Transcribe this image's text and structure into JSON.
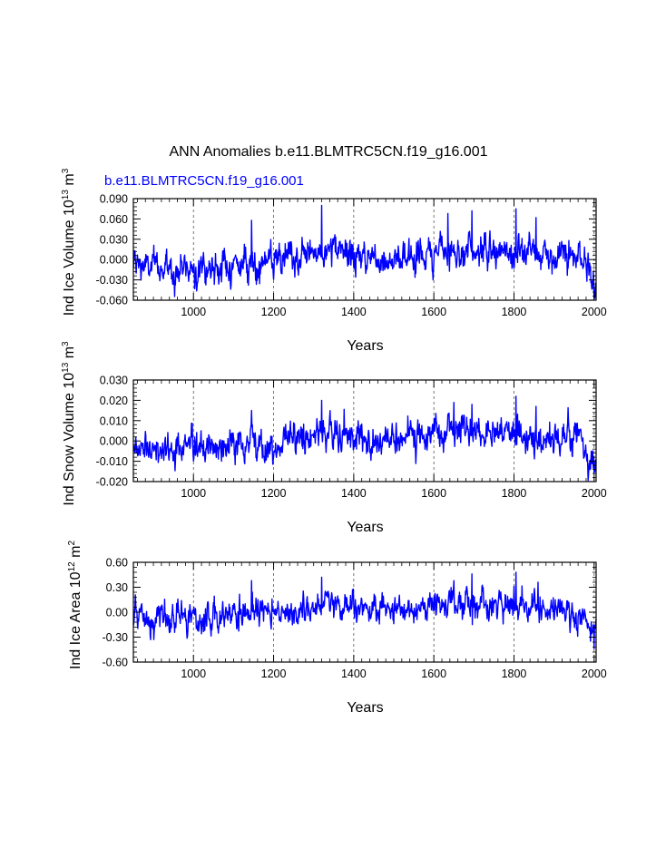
{
  "title": "ANN Anomalies b.e11.BLMTRC5CN.f19_g16.001",
  "series_label": "b.e11.BLMTRC5CN.f19_g16.001",
  "colors": {
    "line": "#0000ff",
    "text": "#000000",
    "grid": "#555555",
    "series_label": "#0000ff"
  },
  "chart_data": [
    {
      "type": "line",
      "title": "",
      "ylabel": {
        "main": "Ind Ice Volume 10",
        "sup": "13",
        "unit": " m",
        "unit_sup": "3"
      },
      "xlabel": "Years",
      "xlim": [
        850,
        2005
      ],
      "ylim": [
        -0.06,
        0.09
      ],
      "xticks": [
        1000,
        1200,
        1400,
        1600,
        1800,
        2000
      ],
      "yticks": [
        -0.06,
        -0.03,
        0.0,
        0.03,
        0.06,
        0.09
      ],
      "ytick_labels": [
        "-0.060",
        "-0.030",
        "0.000",
        "0.030",
        "0.060",
        "0.090"
      ],
      "xtick_labels": [
        "1000",
        "1200",
        "1400",
        "1600",
        "1800",
        "2000"
      ],
      "grid": "vertical dashed at x ticks",
      "series": [
        {
          "name": "b.e11.BLMTRC5CN.f19_g16.001",
          "x": [
            850,
            900,
            950,
            1000,
            1050,
            1100,
            1150,
            1200,
            1250,
            1300,
            1350,
            1400,
            1450,
            1500,
            1550,
            1600,
            1650,
            1700,
            1750,
            1800,
            1850,
            1900,
            1950,
            1975,
            1990,
            2000,
            2005
          ],
          "y": [
            -0.006,
            -0.012,
            -0.014,
            -0.01,
            -0.012,
            -0.008,
            -0.004,
            -0.006,
            0.0,
            0.01,
            0.012,
            0.006,
            0.002,
            0.002,
            0.004,
            0.01,
            0.014,
            0.016,
            0.008,
            0.012,
            0.01,
            0.006,
            0.004,
            -0.005,
            -0.025,
            -0.04,
            -0.035
          ],
          "noise": 0.012,
          "extremes": [
            [
              1145,
              0.058
            ],
            [
              1320,
              0.08
            ],
            [
              1635,
              0.068
            ],
            [
              1695,
              0.072
            ],
            [
              1805,
              0.075
            ],
            [
              1855,
              0.062
            ],
            [
              2000,
              -0.058
            ]
          ]
        }
      ]
    },
    {
      "type": "line",
      "title": "",
      "ylabel": {
        "main": "Ind Snow Volume 10",
        "sup": "13",
        "unit": " m",
        "unit_sup": "3"
      },
      "xlabel": "Years",
      "xlim": [
        850,
        2005
      ],
      "ylim": [
        -0.02,
        0.03
      ],
      "xticks": [
        1000,
        1200,
        1400,
        1600,
        1800,
        2000
      ],
      "yticks": [
        -0.02,
        -0.01,
        0.0,
        0.01,
        0.02,
        0.03
      ],
      "ytick_labels": [
        "-0.020",
        "-0.010",
        "0.000",
        "0.010",
        "0.020",
        "0.030"
      ],
      "xtick_labels": [
        "1000",
        "1200",
        "1400",
        "1600",
        "1800",
        "2000"
      ],
      "grid": "vertical dashed at x ticks",
      "series": [
        {
          "name": "b.e11.BLMTRC5CN.f19_g16.001",
          "x": [
            850,
            900,
            950,
            1000,
            1050,
            1100,
            1150,
            1200,
            1250,
            1300,
            1350,
            1400,
            1450,
            1500,
            1550,
            1600,
            1650,
            1700,
            1750,
            1800,
            1850,
            1900,
            1950,
            1975,
            1990,
            2000,
            2005
          ],
          "y": [
            -0.002,
            -0.004,
            -0.005,
            -0.003,
            -0.004,
            -0.002,
            0.0,
            -0.002,
            0.001,
            0.004,
            0.004,
            0.002,
            0.0,
            0.0,
            0.001,
            0.003,
            0.004,
            0.005,
            0.003,
            0.004,
            0.003,
            0.002,
            0.001,
            -0.002,
            -0.008,
            -0.013,
            -0.011
          ],
          "noise": 0.004,
          "extremes": [
            [
              1145,
              0.015
            ],
            [
              1320,
              0.02
            ],
            [
              1650,
              0.019
            ],
            [
              1695,
              0.018
            ],
            [
              1805,
              0.022
            ],
            [
              1855,
              0.017
            ],
            [
              2000,
              -0.016
            ]
          ]
        }
      ]
    },
    {
      "type": "line",
      "title": "",
      "ylabel": {
        "main": "Ind Ice Area 10",
        "sup": "12",
        "unit": " m",
        "unit_sup": "2"
      },
      "xlabel": "Years",
      "xlim": [
        850,
        2005
      ],
      "ylim": [
        -0.6,
        0.6
      ],
      "xticks": [
        1000,
        1200,
        1400,
        1600,
        1800,
        2000
      ],
      "yticks": [
        -0.6,
        -0.3,
        0.0,
        0.3,
        0.6
      ],
      "ytick_labels": [
        "-0.60",
        "-0.30",
        "0.00",
        "0.30",
        "0.60"
      ],
      "xtick_labels": [
        "1000",
        "1200",
        "1400",
        "1600",
        "1800",
        "2000"
      ],
      "grid": "vertical dashed at x ticks",
      "series": [
        {
          "name": "b.e11.BLMTRC5CN.f19_g16.001",
          "x": [
            850,
            900,
            950,
            1000,
            1050,
            1100,
            1150,
            1200,
            1250,
            1300,
            1350,
            1400,
            1450,
            1500,
            1550,
            1600,
            1650,
            1700,
            1750,
            1800,
            1850,
            1900,
            1950,
            1975,
            1990,
            2000,
            2005
          ],
          "y": [
            -0.06,
            -0.1,
            -0.12,
            -0.08,
            -0.1,
            -0.05,
            0.0,
            -0.04,
            0.02,
            0.06,
            0.08,
            0.05,
            0.02,
            0.02,
            0.04,
            0.08,
            0.11,
            0.12,
            0.06,
            0.1,
            0.08,
            0.04,
            0.02,
            -0.06,
            -0.2,
            -0.34,
            -0.3
          ],
          "noise": 0.09,
          "extremes": [
            [
              1145,
              0.38
            ],
            [
              1320,
              0.42
            ],
            [
              1650,
              0.38
            ],
            [
              1695,
              0.46
            ],
            [
              1805,
              0.48
            ],
            [
              1860,
              0.36
            ],
            [
              2000,
              -0.44
            ]
          ]
        }
      ]
    }
  ]
}
